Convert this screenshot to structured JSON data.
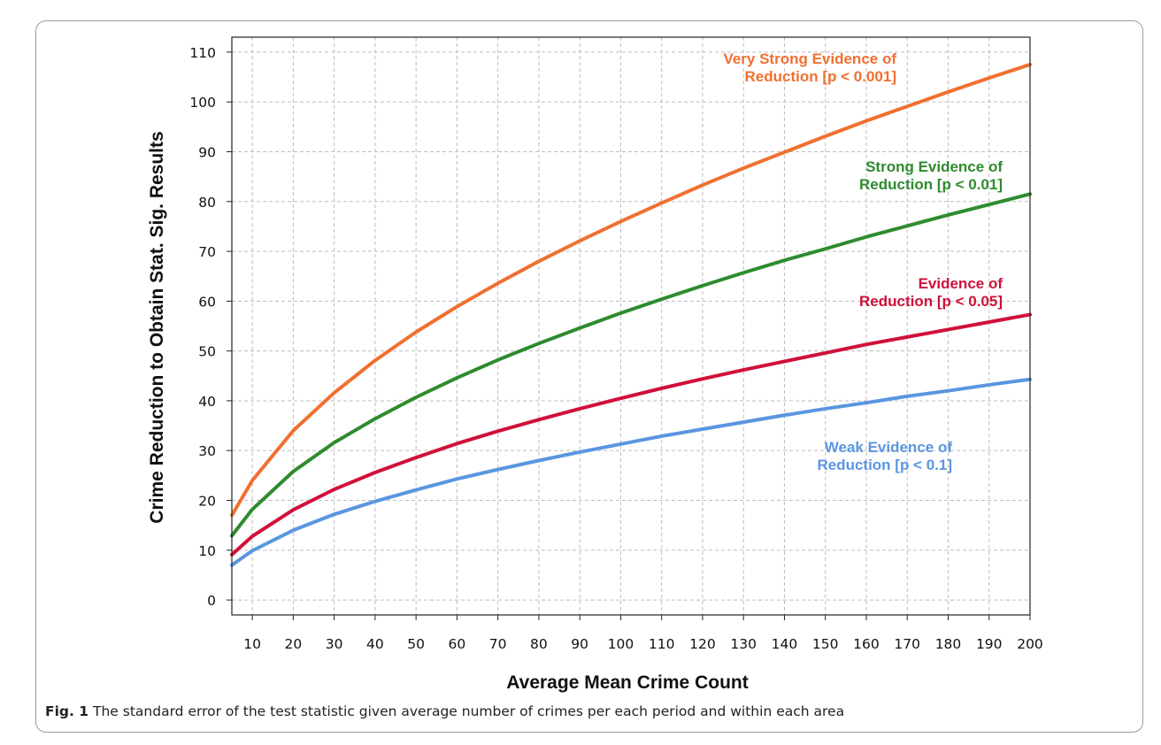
{
  "chart_data": {
    "type": "line",
    "xlabel": "Average Mean Crime Count",
    "ylabel": "Crime Reduction to Obtain Stat. Sig. Results",
    "xlim": [
      5,
      200
    ],
    "ylim": [
      -3,
      113
    ],
    "xticks": [
      10,
      20,
      30,
      40,
      50,
      60,
      70,
      80,
      90,
      100,
      110,
      120,
      130,
      140,
      150,
      160,
      170,
      180,
      190,
      200
    ],
    "yticks": [
      0,
      10,
      20,
      30,
      40,
      50,
      60,
      70,
      80,
      90,
      100,
      110
    ],
    "grid": true,
    "x": [
      5,
      10,
      20,
      30,
      40,
      50,
      60,
      70,
      80,
      90,
      100,
      110,
      120,
      130,
      140,
      150,
      160,
      170,
      180,
      190,
      200
    ],
    "series": [
      {
        "name": "Very Strong Evidence of Reduction [p < 0.001]",
        "label_lines": [
          "Very Strong Evidence of",
          "Reduction [p < 0.001]"
        ],
        "color": "#f07030",
        "values": [
          17.0,
          24.0,
          34.0,
          41.6,
          48.1,
          53.8,
          58.9,
          63.6,
          68.0,
          72.1,
          76.0,
          79.7,
          83.3,
          86.7,
          89.9,
          93.1,
          96.2,
          99.1,
          102.0,
          104.8,
          107.5
        ]
      },
      {
        "name": "Strong Evidence of Reduction [p < 0.01]",
        "label_lines": [
          "Strong Evidence of",
          "Reduction [p < 0.01]"
        ],
        "color": "#2e8b2e",
        "values": [
          12.9,
          18.2,
          25.8,
          31.6,
          36.4,
          40.7,
          44.6,
          48.2,
          51.5,
          54.6,
          57.6,
          60.4,
          63.1,
          65.7,
          68.2,
          70.5,
          72.9,
          75.1,
          77.3,
          79.4,
          81.5
        ]
      },
      {
        "name": "Evidence of Reduction [p < 0.05]",
        "label_lines": [
          "Evidence of",
          "Reduction [p < 0.05]"
        ],
        "color": "#d0103a",
        "values": [
          9.1,
          12.8,
          18.1,
          22.2,
          25.6,
          28.6,
          31.4,
          33.9,
          36.2,
          38.4,
          40.5,
          42.5,
          44.4,
          46.2,
          47.9,
          49.6,
          51.3,
          52.8,
          54.3,
          55.8,
          57.3
        ]
      },
      {
        "name": "Weak Evidence of Reduction [p < 0.1]",
        "label_lines": [
          "Weak Evidence of",
          "Reduction [p < 0.1]"
        ],
        "color": "#5a96e0",
        "values": [
          7.0,
          9.9,
          14.0,
          17.2,
          19.8,
          22.1,
          24.3,
          26.2,
          28.0,
          29.7,
          31.3,
          32.9,
          34.3,
          35.7,
          37.1,
          38.4,
          39.6,
          40.9,
          42.0,
          43.2,
          44.3
        ]
      }
    ]
  },
  "caption": {
    "fig_label": "Fig. 1",
    "text": "The standard error of the test statistic given average number of crimes per each period and within each area"
  }
}
